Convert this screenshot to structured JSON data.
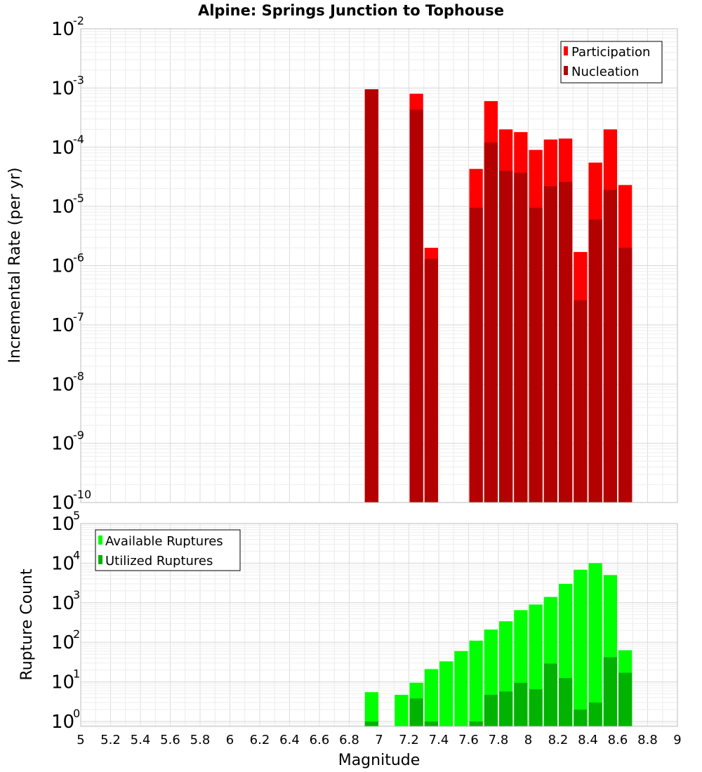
{
  "chart_data": [
    {
      "type": "bar",
      "title": "Alpine: Springs Junction to Tophouse",
      "xlabel": "",
      "ylabel": "Incremental Rate (per yr)",
      "yscale": "log",
      "xlim": [
        5,
        9
      ],
      "ylim": [
        1e-10,
        0.01
      ],
      "bin_width": 0.1,
      "grid": true,
      "legend_position": "top-right",
      "y_tick_exponents": [
        "-10",
        "-9",
        "-8",
        "-7",
        "-6",
        "-5",
        "-4",
        "-3",
        "-2"
      ],
      "x": [
        6.95,
        7.25,
        7.35,
        7.65,
        7.75,
        7.85,
        7.95,
        8.05,
        8.15,
        8.25,
        8.35,
        8.45,
        8.55,
        8.65
      ],
      "series": [
        {
          "name": "Participation",
          "color": "#ff0000",
          "values": [
            0.00095,
            0.0008,
            2e-06,
            4.3e-05,
            0.0006,
            0.0002,
            0.00018,
            9e-05,
            0.000135,
            0.00014,
            1.7e-06,
            5.5e-05,
            0.0002,
            2.3e-05
          ]
        },
        {
          "name": "Nucleation",
          "color": "#b30000",
          "values": [
            0.00095,
            0.00043,
            1.3e-06,
            9.5e-06,
            0.00012,
            4e-05,
            3.7e-05,
            9.5e-06,
            2.2e-05,
            2.6e-05,
            2.6e-07,
            6e-06,
            1.9e-05,
            2e-06
          ]
        }
      ]
    },
    {
      "type": "bar",
      "title": "",
      "xlabel": "Magnitude",
      "ylabel": "Rupture Count",
      "yscale": "log",
      "xlim": [
        5,
        9
      ],
      "ylim": [
        0.75,
        100000
      ],
      "bin_width": 0.1,
      "grid": true,
      "legend_position": "top-left",
      "x_ticks": [
        "5",
        "5.2",
        "5.4",
        "5.6",
        "5.8",
        "6",
        "6.2",
        "6.4",
        "6.6",
        "6.8",
        "7",
        "7.2",
        "7.4",
        "7.6",
        "7.8",
        "8",
        "8.2",
        "8.4",
        "8.6",
        "8.8",
        "9"
      ],
      "y_tick_exponents": [
        "0",
        "1",
        "2",
        "3",
        "4",
        "5"
      ],
      "x": [
        6.95,
        7.15,
        7.25,
        7.35,
        7.45,
        7.55,
        7.65,
        7.75,
        7.85,
        7.95,
        8.05,
        8.15,
        8.25,
        8.35,
        8.45,
        8.55,
        8.65
      ],
      "series": [
        {
          "name": "Available Ruptures",
          "color": "#00ff00",
          "values": [
            5.5,
            4.7,
            9.5,
            21,
            33,
            60,
            110,
            210,
            340,
            650,
            900,
            1400,
            3000,
            6800,
            10000,
            5000,
            63
          ]
        },
        {
          "name": "Utilized Ruptures",
          "color": "#00b300",
          "values": [
            1,
            0,
            3.8,
            1,
            0,
            0,
            1,
            4.7,
            5.7,
            9.5,
            6.5,
            29,
            12.5,
            2,
            3,
            42,
            17
          ]
        }
      ]
    }
  ]
}
